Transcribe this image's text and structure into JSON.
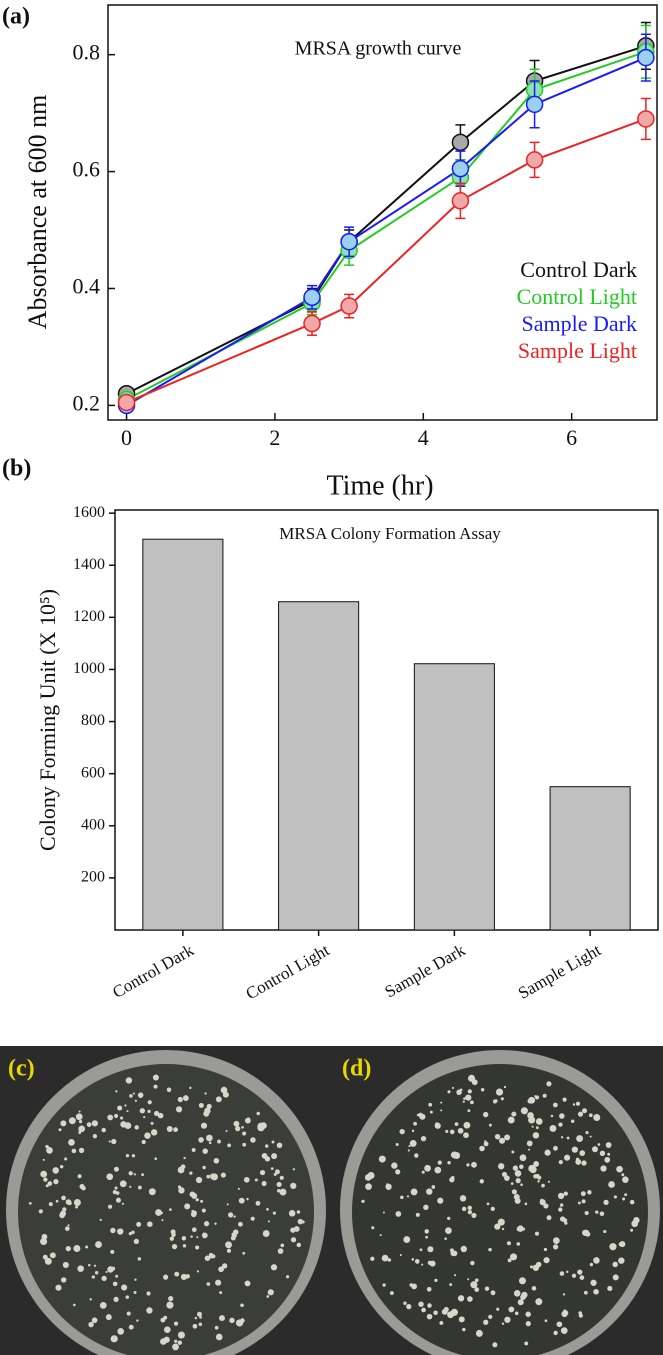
{
  "chart_data": [
    {
      "type": "line",
      "panel_label": "(a)",
      "title": "MRSA growth curve",
      "xlabel": "Time (hr)",
      "ylabel": "Absorbance at 600 nm",
      "x": [
        0,
        2.5,
        3,
        4.5,
        5.5,
        7
      ],
      "xlim": [
        -0.25,
        7.15
      ],
      "xticks": [
        0,
        2,
        4,
        6
      ],
      "ylim": [
        0.175,
        0.885
      ],
      "yticks": [
        0.2,
        0.4,
        0.6,
        0.8
      ],
      "legend": "right",
      "series": [
        {
          "name": "Control Dark",
          "color": "#111111",
          "marker_color": "#a8a8a8",
          "values": [
            0.22,
            0.38,
            0.48,
            0.65,
            0.755,
            0.815
          ],
          "errors": [
            0.01,
            0.02,
            0.02,
            0.03,
            0.035,
            0.04
          ]
        },
        {
          "name": "Control Light",
          "color": "#22cc22",
          "marker_color": "#8fe0b4",
          "values": [
            0.21,
            0.375,
            0.465,
            0.59,
            0.74,
            0.805
          ],
          "errors": [
            0.01,
            0.02,
            0.025,
            0.03,
            0.035,
            0.045
          ]
        },
        {
          "name": "Sample Dark",
          "color": "#1a1aff",
          "marker_color": "#9ad0f0",
          "values": [
            0.2,
            0.385,
            0.48,
            0.605,
            0.715,
            0.795
          ],
          "errors": [
            0.01,
            0.02,
            0.025,
            0.03,
            0.04,
            0.04
          ]
        },
        {
          "name": "Sample Light",
          "color": "#ee2222",
          "marker_color": "#f0a8a8",
          "values": [
            0.205,
            0.34,
            0.37,
            0.55,
            0.62,
            0.69
          ],
          "errors": [
            0.01,
            0.02,
            0.02,
            0.03,
            0.03,
            0.035
          ]
        }
      ]
    },
    {
      "type": "bar",
      "panel_label": "(b)",
      "title": "MRSA Colony Formation Assay",
      "ylabel": "Colony Forming Unit (X 10⁵)",
      "categories": [
        "Control Dark",
        "Control Light",
        "Sample Dark",
        "Sample Light"
      ],
      "values": [
        1500,
        1260,
        1022,
        550
      ],
      "color": "#c0c0c0",
      "ylim": [
        0,
        1612
      ],
      "yticks": [
        200,
        400,
        600,
        800,
        1000,
        1200,
        1400,
        1600
      ]
    }
  ],
  "photos": [
    {
      "label": "(c)"
    },
    {
      "label": "(d)"
    }
  ]
}
